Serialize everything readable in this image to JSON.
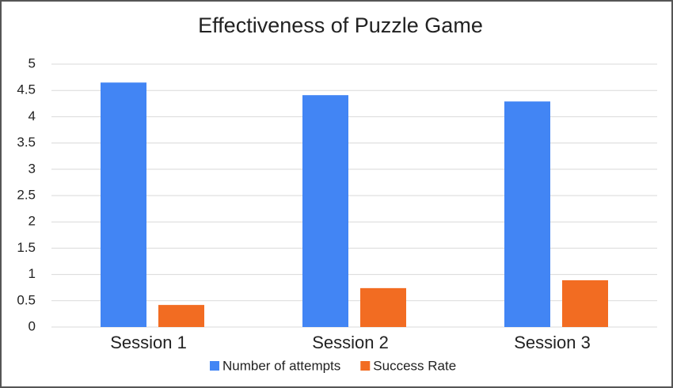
{
  "chart_data": {
    "type": "bar",
    "title": "Effectiveness of Puzzle Game",
    "categories": [
      "Session 1",
      "Session 2",
      "Session 3"
    ],
    "series": [
      {
        "name": "Number of attempts",
        "color": "#4285f4",
        "values": [
          4.65,
          4.41,
          4.29
        ]
      },
      {
        "name": "Success Rate",
        "color": "#f26c22",
        "values": [
          0.42,
          0.74,
          0.89
        ]
      }
    ],
    "ylim": [
      0,
      5
    ],
    "yticks": [
      0,
      0.5,
      1,
      1.5,
      2,
      2.5,
      3,
      3.5,
      4,
      4.5,
      5
    ],
    "grid": true,
    "legend": "bottom"
  }
}
